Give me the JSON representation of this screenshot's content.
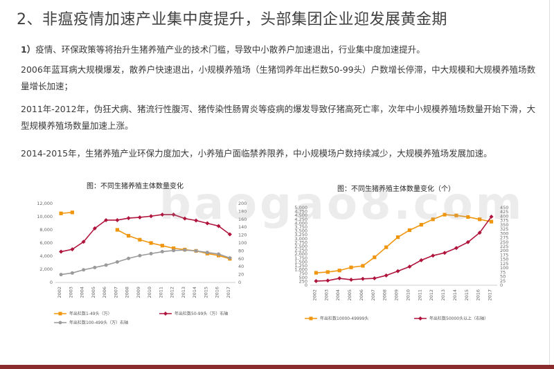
{
  "page": {
    "title": "2、非瘟疫情加速产业集中度提升，头部集团企业迎发展黄金期",
    "para1_num": "1）",
    "para1": "疫情、环保政策等将抬升生猪养殖产业的技术门槛，导致中小散养户加速退出，行业集中度加速提升。",
    "para2": "2006年蓝耳病大规模爆发，散养户快速退出，小规模养殖场（生猪饲养年出栏数50-99头）户数增长停滞，中大规模和大规模养殖场数量增长加速；",
    "para3": "2011年-2012年，伪狂犬病、猪流行性腹泻、猪传染性肠胃炎等疫病的爆发导致仔猪高死亡率，次年中小规模养殖场数量开始下滑，大型规模养殖场数量加速上涨。",
    "para4": "2014-2015年，生猪养殖产业环保力度加大，小养殖户面临禁养限养，中小规模场户数持续减少，大规模养殖场发展加速。",
    "watermark": "baogao8.com"
  },
  "colors": {
    "orange": "#f0960e",
    "crimson": "#b0143c",
    "gray": "#9a9a9a",
    "bottom_bar": "#8b2c2c"
  },
  "chart_data": [
    {
      "type": "line",
      "title": "图：不同生猪养殖主体数量变化",
      "x": [
        "2002",
        "2003",
        "2004",
        "2005",
        "2006",
        "2007",
        "2008",
        "2009",
        "2010",
        "2011",
        "2012",
        "2013",
        "2014",
        "2015",
        "2016",
        "2017"
      ],
      "ylim_left": [
        0,
        12000
      ],
      "yticks_left": [
        "0",
        "2,000",
        "4,000",
        "6,000",
        "8,000",
        "10,000",
        "12,000"
      ],
      "ylim_right": [
        0,
        200
      ],
      "yticks_right": [
        "0",
        "20",
        "40",
        "60",
        "80",
        "100",
        "120",
        "140",
        "160",
        "180",
        "200"
      ],
      "series": [
        {
          "name": "年出栏数1-49头（万）",
          "axis": "left",
          "color": "#f0960e",
          "values": [
            10500,
            10650,
            null,
            null,
            null,
            8000,
            7100,
            6500,
            6000,
            5600,
            5200,
            5000,
            4800,
            4400,
            4100,
            3600
          ]
        },
        {
          "name": "年出栏数50-99头（万）右轴",
          "axis": "right",
          "color": "#b0143c",
          "values": [
            78,
            84,
            103,
            137,
            158,
            158,
            163,
            165,
            168,
            172,
            172,
            162,
            157,
            150,
            143,
            122
          ]
        },
        {
          "name": "年出栏数100-499头（万）右轴",
          "axis": "right",
          "color": "#9a9a9a",
          "values": [
            20,
            24,
            32,
            38,
            44,
            52,
            61,
            68,
            73,
            78,
            81,
            82,
            80,
            76,
            72,
            62
          ]
        }
      ]
    },
    {
      "type": "line",
      "title": "图：不同生猪养殖主体数量变化（个）",
      "x": [
        "2002",
        "2003",
        "2004",
        "2005",
        "2006",
        "2007",
        "2008",
        "2009",
        "2010",
        "2011",
        "2012",
        "2013",
        "2014",
        "2015",
        "2016",
        "2017"
      ],
      "ylim_left": [
        0,
        5000
      ],
      "yticks_left": [
        "0",
        "250",
        "500",
        "750",
        "1,000",
        "1,250",
        "1,500",
        "1,750",
        "2,000",
        "2,250",
        "2,500",
        "2,750",
        "3,000",
        "3,250",
        "3,500",
        "3,750",
        "4,000",
        "4,250",
        "4,500",
        "4,750",
        "5,000"
      ],
      "ylim_right": [
        0,
        450
      ],
      "yticks_right": [
        "0",
        "25",
        "50",
        "75",
        "100",
        "125",
        "150",
        "175",
        "200",
        "225",
        "250",
        "275",
        "300",
        "325",
        "350",
        "375",
        "400",
        "425",
        "450"
      ],
      "series": [
        {
          "name": "年出栏数10000-49999头",
          "axis": "left",
          "color": "#f0960e",
          "values": [
            800,
            850,
            950,
            1150,
            1250,
            1800,
            2450,
            3100,
            3550,
            3900,
            4250,
            4550,
            4500,
            4400,
            4250,
            4100
          ]
        },
        {
          "name": "年出栏数50000头以上（右轴）",
          "axis": "right",
          "color": "#b0143c",
          "values": [
            24,
            27,
            40,
            32,
            37,
            40,
            57,
            82,
            108,
            145,
            172,
            188,
            216,
            250,
            305,
            398
          ]
        }
      ]
    }
  ]
}
